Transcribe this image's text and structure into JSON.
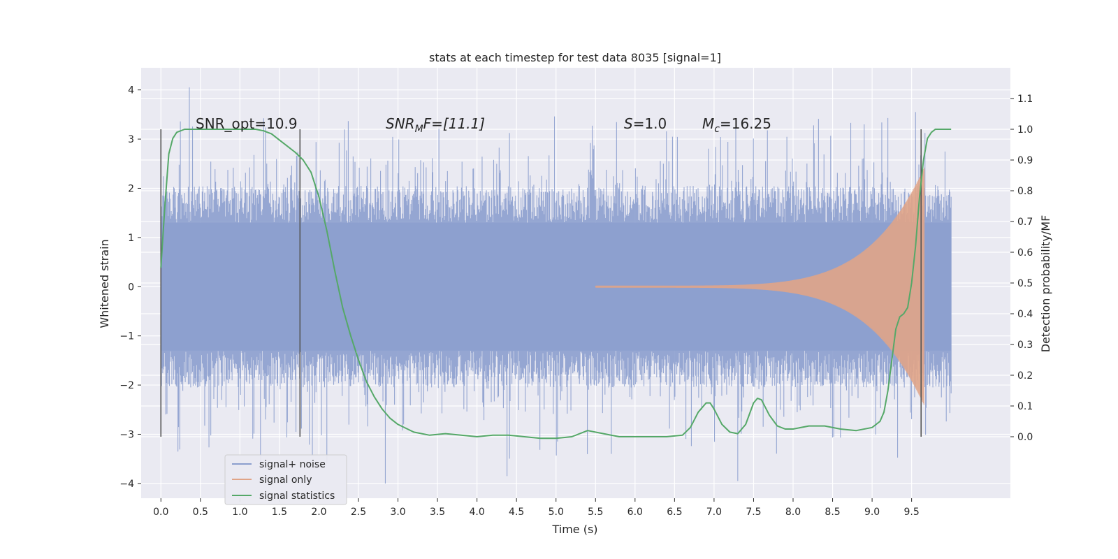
{
  "chart_data": {
    "type": "line",
    "title": "stats at each timestep for test data 8035 [signal=1]",
    "xlabel": "Time (s)",
    "ylabel": "Whitened strain",
    "ylabel_right": "Detection probability/MF",
    "xlim": [
      -0.25,
      10.75
    ],
    "ylim": [
      -4.3,
      4.45
    ],
    "ylim_right": [
      -0.2,
      1.2
    ],
    "x_ticks": [
      "0.0",
      "0.5",
      "1.0",
      "1.5",
      "2.0",
      "2.5",
      "3.0",
      "3.5",
      "4.0",
      "4.5",
      "5.0",
      "5.5",
      "6.0",
      "6.5",
      "7.0",
      "7.5",
      "8.0",
      "8.5",
      "9.0",
      "9.5"
    ],
    "y_ticks": [
      "4",
      "3",
      "2",
      "1",
      "0",
      "−1",
      "−2",
      "−3",
      "−4"
    ],
    "y_ticks_right": [
      "1.1",
      "1.0",
      "0.9",
      "0.8",
      "0.7",
      "0.6",
      "0.5",
      "0.4",
      "0.3",
      "0.2",
      "0.1",
      "0.0"
    ],
    "grid": true,
    "legend_position": "lower-left",
    "annotations": {
      "snr_opt": "SNR_opt=10.9",
      "snr_mf_main": "SNR",
      "snr_mf_sub": "M",
      "snr_mf_rest": "F=[11.1]",
      "s_main": "S",
      "s_rest": "=1.0",
      "mc_main": "M",
      "mc_sub": "c",
      "mc_rest": "=16.25"
    },
    "vertical_markers": [
      0.0,
      1.76,
      9.62
    ],
    "series": [
      {
        "name": "signal+ noise",
        "color": "#8c9fce",
        "x_range": [
          0.0,
          10.0
        ],
        "core_band": [
          -1.3,
          1.3
        ],
        "typical_peaks": [
          -2.2,
          2.2
        ],
        "extremes": [
          -4.0,
          4.05
        ]
      },
      {
        "name": "signal only",
        "color": "#e0a487",
        "x_range": [
          5.5,
          9.66
        ],
        "envelope_end": 2.4
      },
      {
        "name": "signal statistics",
        "color": "#55a868",
        "axis": "right",
        "x": [
          0.0,
          0.05,
          0.1,
          0.15,
          0.2,
          0.3,
          0.5,
          1.0,
          1.2,
          1.3,
          1.4,
          1.5,
          1.6,
          1.7,
          1.8,
          1.9,
          2.0,
          2.1,
          2.2,
          2.3,
          2.4,
          2.5,
          2.6,
          2.7,
          2.8,
          2.9,
          3.0,
          3.2,
          3.4,
          3.6,
          3.8,
          4.0,
          4.2,
          4.4,
          4.6,
          4.8,
          5.0,
          5.2,
          5.4,
          5.6,
          5.8,
          6.0,
          6.2,
          6.4,
          6.6,
          6.7,
          6.8,
          6.9,
          6.95,
          7.0,
          7.1,
          7.2,
          7.3,
          7.4,
          7.5,
          7.55,
          7.6,
          7.7,
          7.8,
          7.9,
          8.0,
          8.2,
          8.4,
          8.6,
          8.8,
          9.0,
          9.1,
          9.15,
          9.2,
          9.25,
          9.3,
          9.35,
          9.4,
          9.45,
          9.5,
          9.55,
          9.6,
          9.65,
          9.7,
          9.75,
          9.8,
          9.9,
          10.0
        ],
        "y": [
          0.55,
          0.75,
          0.92,
          0.97,
          0.99,
          1.0,
          1.0,
          1.0,
          1.0,
          0.995,
          0.985,
          0.965,
          0.945,
          0.925,
          0.9,
          0.86,
          0.78,
          0.67,
          0.54,
          0.42,
          0.33,
          0.25,
          0.18,
          0.13,
          0.09,
          0.06,
          0.04,
          0.015,
          0.005,
          0.01,
          0.005,
          0.0,
          0.005,
          0.005,
          0.0,
          -0.005,
          -0.005,
          0.0,
          0.02,
          0.01,
          0.0,
          0.0,
          0.0,
          0.0,
          0.005,
          0.03,
          0.08,
          0.11,
          0.11,
          0.09,
          0.04,
          0.015,
          0.01,
          0.04,
          0.11,
          0.125,
          0.12,
          0.07,
          0.035,
          0.025,
          0.025,
          0.035,
          0.035,
          0.025,
          0.02,
          0.03,
          0.05,
          0.08,
          0.15,
          0.25,
          0.35,
          0.39,
          0.4,
          0.42,
          0.5,
          0.62,
          0.78,
          0.9,
          0.97,
          0.99,
          1.0,
          1.0,
          1.0
        ]
      }
    ]
  }
}
